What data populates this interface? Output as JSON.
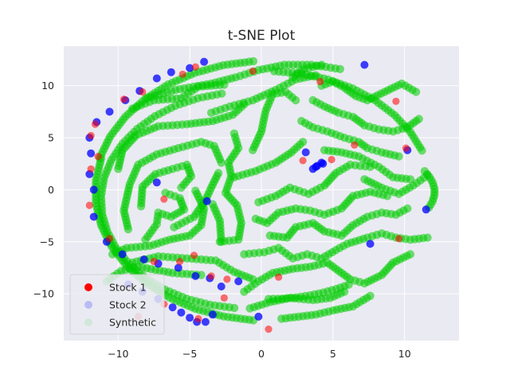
{
  "chart_data": {
    "type": "scatter",
    "title": "t-SNE Plot",
    "xlabel": "",
    "ylabel": "",
    "xlim": [
      -13.8,
      13.8
    ],
    "ylim": [
      -14.5,
      13.8
    ],
    "xticks": [
      -10,
      -5,
      0,
      5,
      10
    ],
    "yticks": [
      -10,
      -5,
      0,
      5,
      10
    ],
    "xtick_labels": [
      "−10",
      "−5",
      "0",
      "5",
      "10"
    ],
    "ytick_labels": [
      "−10",
      "−5",
      "0",
      "5",
      "10"
    ],
    "grid": true,
    "legend_position": "lower-left",
    "background": "#eaeaf2",
    "grid_color": "#ffffff",
    "series": [
      {
        "name": "Stock 1",
        "color": "#ff0000",
        "alpha": 1.0,
        "legend_alpha": 1.0
      },
      {
        "name": "Stock 2",
        "color": "#0000ff",
        "alpha": 0.2,
        "legend_alpha": 0.2
      },
      {
        "name": "Synthetic",
        "color": "#00cc00",
        "alpha": 0.45,
        "legend_alpha": 0.1
      }
    ],
    "points": {
      "stock1": [
        [
          -11.9,
          5.2
        ],
        [
          -11.4,
          3.2
        ],
        [
          -11.9,
          2.0
        ],
        [
          -12.0,
          -1.5
        ],
        [
          -10.6,
          -4.7
        ],
        [
          -7.5,
          -6.9
        ],
        [
          -5.7,
          -6.9
        ],
        [
          -4.7,
          -6.3
        ],
        [
          -3.5,
          -8.3
        ],
        [
          -2.4,
          -8.6
        ],
        [
          -6.8,
          -11.0
        ],
        [
          -4.4,
          -12.4
        ],
        [
          -4.6,
          11.8
        ],
        [
          -5.5,
          11.1
        ],
        [
          -8.3,
          9.4
        ],
        [
          -9.6,
          8.7
        ],
        [
          2.9,
          2.8
        ],
        [
          4.9,
          2.9
        ],
        [
          -6.8,
          -0.9
        ],
        [
          6.5,
          4.3
        ],
        [
          10.1,
          4.0
        ],
        [
          9.6,
          -4.7
        ],
        [
          -2.6,
          -10.4
        ],
        [
          1.2,
          -8.4
        ],
        [
          -11.6,
          6.3
        ],
        [
          4.1,
          10.4
        ],
        [
          9.4,
          8.5
        ],
        [
          -0.6,
          11.4
        ],
        [
          -8.6,
          -12.2
        ],
        [
          0.5,
          -13.4
        ]
      ],
      "stock2": [
        [
          -12.0,
          5.0
        ],
        [
          -11.9,
          3.5
        ],
        [
          -12.0,
          1.5
        ],
        [
          -11.7,
          0.0
        ],
        [
          -11.7,
          -2.6
        ],
        [
          -10.8,
          -5.0
        ],
        [
          -9.7,
          -6.2
        ],
        [
          -8.2,
          -6.7
        ],
        [
          -7.2,
          -7.1
        ],
        [
          -5.8,
          -7.5
        ],
        [
          -4.6,
          -8.3
        ],
        [
          -3.6,
          -8.5
        ],
        [
          -2.8,
          -9.3
        ],
        [
          -9.3,
          -9.1
        ],
        [
          -8.3,
          -9.8
        ],
        [
          -7.2,
          -10.5
        ],
        [
          -6.2,
          -11.3
        ],
        [
          -5.6,
          -11.8
        ],
        [
          -5.0,
          -12.3
        ],
        [
          -4.5,
          -12.7
        ],
        [
          -3.9,
          -12.7
        ],
        [
          -3.4,
          -12.0
        ],
        [
          -4.0,
          12.3
        ],
        [
          -5.0,
          11.7
        ],
        [
          -6.3,
          11.3
        ],
        [
          -7.3,
          10.7
        ],
        [
          -8.5,
          9.5
        ],
        [
          -9.5,
          8.6
        ],
        [
          -10.6,
          7.5
        ],
        [
          -11.5,
          6.5
        ],
        [
          3.6,
          2.0
        ],
        [
          3.9,
          2.3
        ],
        [
          4.2,
          2.6
        ],
        [
          3.1,
          3.6
        ],
        [
          3.8,
          2.2
        ],
        [
          4.3,
          2.5
        ],
        [
          10.2,
          3.8
        ],
        [
          11.5,
          -1.9
        ],
        [
          7.6,
          -5.2
        ],
        [
          -1.6,
          -8.8
        ],
        [
          -0.2,
          -12.2
        ],
        [
          -3.8,
          -1.1
        ],
        [
          -7.3,
          0.7
        ],
        [
          7.2,
          12.0
        ]
      ]
    }
  }
}
